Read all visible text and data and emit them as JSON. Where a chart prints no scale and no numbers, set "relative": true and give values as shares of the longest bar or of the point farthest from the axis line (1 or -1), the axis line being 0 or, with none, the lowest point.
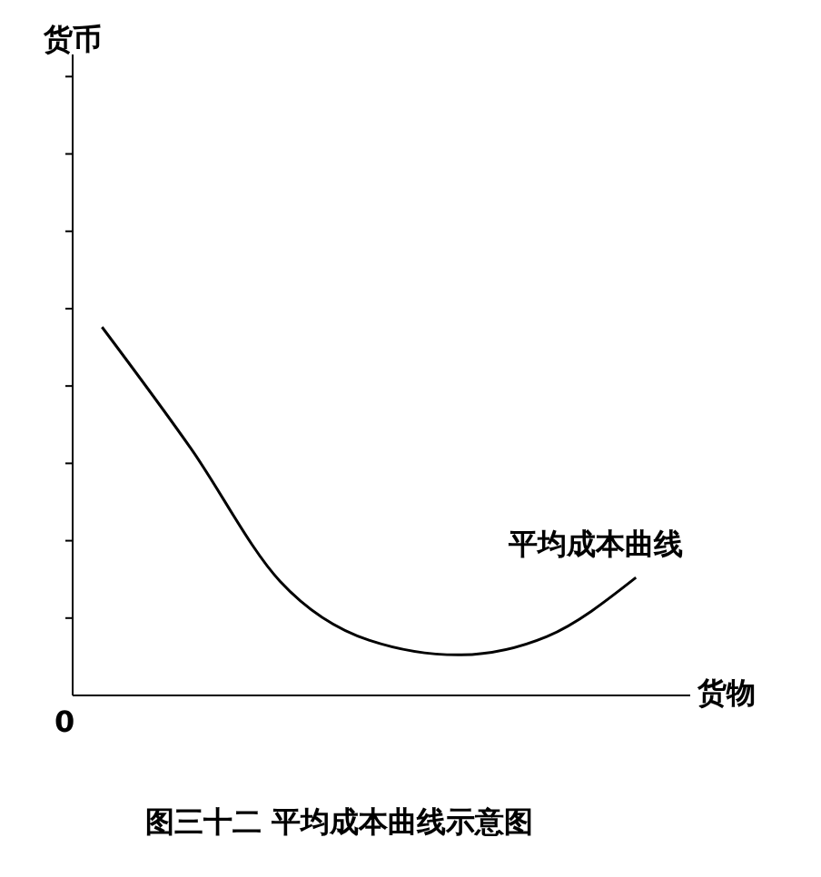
{
  "chart_data": {
    "type": "line",
    "title": "图三十二  平均成本曲线示意图",
    "xlabel": "货物",
    "relative": true,
    "categories": [
      null,
      null,
      null,
      null,
      null,
      null,
      null
    ],
    "series": [
      {
        "color": "#000000",
        "values": [
          1,
          0.67,
          0.31,
          0.15,
          0.11,
          0.16,
          0.32
        ]
      }
    ],
    "annotations": [
      "平均成本曲线",
      "0",
      "货币"
    ],
    "marker": "none"
  }
}
